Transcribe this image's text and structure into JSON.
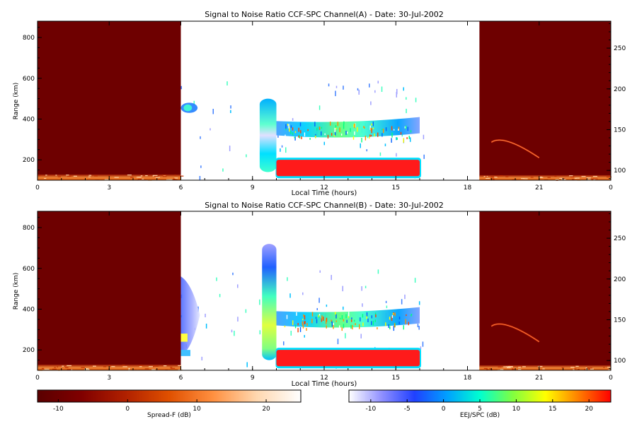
{
  "chart_data": [
    {
      "type": "heatmap",
      "title": "Signal to Noise Ratio CCF-SPC Channel(A) - Date: 30-Jul-2002",
      "xlabel": "Local Time (hours)",
      "ylabel": "Range (km)",
      "xlim": [
        0,
        24
      ],
      "ylim": [
        100,
        880
      ],
      "xticks": [
        "0",
        "3",
        "6",
        "9",
        "12",
        "15",
        "18",
        "21",
        "0"
      ],
      "yticks": [
        200,
        400,
        600,
        800
      ],
      "y2lim": [
        88,
        283
      ],
      "y2ticks": [
        100,
        150,
        200,
        250
      ],
      "regions": [
        {
          "kind": "spread-f-night",
          "t": [
            0,
            6
          ],
          "r": [
            100,
            880
          ]
        },
        {
          "kind": "spread-f-night",
          "t": [
            18.5,
            24
          ],
          "r": [
            100,
            880
          ]
        },
        {
          "kind": "night-layer",
          "t": [
            0,
            6
          ],
          "r": [
            100,
            128
          ]
        },
        {
          "kind": "night-layer",
          "t": [
            18.5,
            24
          ],
          "r": [
            100,
            125
          ]
        },
        {
          "kind": "night-arc",
          "t": [
            19.0,
            21.0
          ],
          "r": [
            300,
            210
          ]
        },
        {
          "kind": "echo-blob",
          "t": [
            6.0,
            6.7
          ],
          "r": [
            430,
            480
          ]
        },
        {
          "kind": "echo-column",
          "t": [
            9.3,
            10.0
          ],
          "r": [
            140,
            500
          ]
        },
        {
          "kind": "echo-band",
          "t": [
            10.0,
            16.0
          ],
          "r": [
            300,
            400
          ]
        },
        {
          "kind": "eej-band",
          "t": [
            10.0,
            16.0
          ],
          "r": [
            120,
            200
          ]
        }
      ]
    },
    {
      "type": "heatmap",
      "title": "Signal to Noise Ratio CCF-SPC Channel(B) - Date: 30-Jul-2002",
      "xlabel": "Local Time (hours)",
      "ylabel": "Range (km)",
      "xlim": [
        0,
        24
      ],
      "ylim": [
        100,
        880
      ],
      "xticks": [
        "0",
        "3",
        "6",
        "9",
        "12",
        "15",
        "18",
        "21",
        "0"
      ],
      "yticks": [
        200,
        400,
        600,
        800
      ],
      "y2lim": [
        88,
        283
      ],
      "y2ticks": [
        100,
        150,
        200,
        250
      ],
      "regions": [
        {
          "kind": "spread-f-night",
          "t": [
            0,
            6
          ],
          "r": [
            100,
            880
          ]
        },
        {
          "kind": "spread-f-night",
          "t": [
            18.5,
            24
          ],
          "r": [
            100,
            880
          ]
        },
        {
          "kind": "night-layer",
          "t": [
            0,
            6
          ],
          "r": [
            100,
            128
          ]
        },
        {
          "kind": "night-layer",
          "t": [
            18.5,
            24
          ],
          "r": [
            100,
            125
          ]
        },
        {
          "kind": "night-arc",
          "t": [
            19.0,
            21.0
          ],
          "r": [
            330,
            240
          ]
        },
        {
          "kind": "echo-plume",
          "t": [
            6.0,
            6.8
          ],
          "r": [
            180,
            560
          ]
        },
        {
          "kind": "echo-column",
          "t": [
            9.4,
            10.0
          ],
          "r": [
            150,
            720
          ]
        },
        {
          "kind": "echo-band",
          "t": [
            10.0,
            16.0
          ],
          "r": [
            300,
            400
          ]
        },
        {
          "kind": "eej-band",
          "t": [
            10.0,
            16.0
          ],
          "r": [
            120,
            200
          ]
        }
      ]
    }
  ],
  "colorbars": [
    {
      "label": "Spread-F (dB)",
      "ticks": [
        "-10",
        "0",
        "10",
        "20"
      ],
      "tick_values": [
        -10,
        0,
        10,
        20
      ],
      "range": [
        -13,
        25
      ],
      "colors": [
        "#5a0000",
        "#800000",
        "#b02000",
        "#e05000",
        "#ff9040",
        "#ffd8b0",
        "#ffffff"
      ]
    },
    {
      "label": "EEJ/SPC (dB)",
      "ticks": [
        "-10",
        "-5",
        "0",
        "5",
        "10",
        "15",
        "20"
      ],
      "tick_values": [
        -10,
        -5,
        0,
        5,
        10,
        15,
        20
      ],
      "range": [
        -13,
        23
      ],
      "colors": [
        "#ffffff",
        "#9090ff",
        "#2040ff",
        "#00a0ff",
        "#00ffd0",
        "#80ff40",
        "#ffff00",
        "#ff8000",
        "#ff0000"
      ]
    }
  ],
  "colors": {
    "night": "#6e0000",
    "eej": "#ff1a1a"
  }
}
